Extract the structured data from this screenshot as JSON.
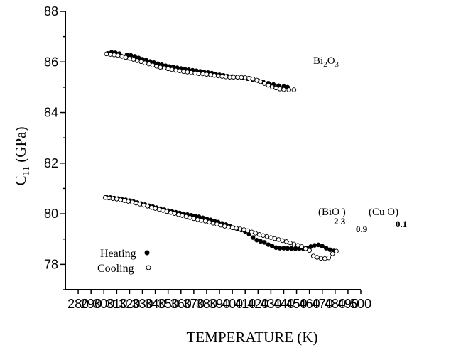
{
  "chart_data": {
    "type": "scatter",
    "title": "",
    "xlabel": "TEMPERATURE  (K)",
    "ylabel": {
      "main": "C",
      "sub": "11",
      "unit": " (GPa)"
    },
    "xlim": [
      270,
      500
    ],
    "ylim": [
      77,
      88
    ],
    "x_ticks": [
      280,
      290,
      300,
      310,
      320,
      330,
      340,
      350,
      360,
      370,
      380,
      390,
      400,
      410,
      420,
      430,
      440,
      450,
      460,
      470,
      480,
      490,
      500
    ],
    "y_ticks": [
      78,
      80,
      82,
      84,
      86,
      88
    ],
    "grid": false,
    "legend": {
      "placement": "lower-left",
      "entries": [
        {
          "label": "Heating",
          "marker": "filled-circle"
        },
        {
          "label": "Cooling",
          "marker": "open-circle"
        }
      ]
    },
    "annotations": {
      "bi2o3": {
        "parts": [
          "Bi",
          "2",
          "O",
          "3"
        ]
      },
      "composite": {
        "parts": [
          "(BiO )",
          "2 3",
          "0.9",
          "(Cu O)",
          "0.1"
        ]
      }
    },
    "series": [
      {
        "name": "Heating",
        "marker": "filled-circle",
        "points": [
          [
            303,
            86.34
          ],
          [
            306,
            86.38
          ],
          [
            309,
            86.36
          ],
          [
            312,
            86.33
          ],
          [
            318,
            86.28
          ],
          [
            321,
            86.26
          ],
          [
            324,
            86.22
          ],
          [
            327,
            86.16
          ],
          [
            330,
            86.11
          ],
          [
            333,
            86.07
          ],
          [
            336,
            86.02
          ],
          [
            339,
            85.97
          ],
          [
            342,
            85.93
          ],
          [
            345,
            85.89
          ],
          [
            348,
            85.85
          ],
          [
            351,
            85.82
          ],
          [
            354,
            85.8
          ],
          [
            357,
            85.77
          ],
          [
            360,
            85.74
          ],
          [
            363,
            85.72
          ],
          [
            366,
            85.69
          ],
          [
            369,
            85.67
          ],
          [
            372,
            85.65
          ],
          [
            375,
            85.63
          ],
          [
            378,
            85.6
          ],
          [
            381,
            85.58
          ],
          [
            384,
            85.56
          ],
          [
            387,
            85.52
          ],
          [
            390,
            85.49
          ],
          [
            393,
            85.47
          ],
          [
            396,
            85.44
          ],
          [
            400,
            85.42
          ],
          [
            404,
            85.4
          ],
          [
            408,
            85.37
          ],
          [
            412,
            85.34
          ],
          [
            416,
            85.3
          ],
          [
            420,
            85.26
          ],
          [
            424,
            85.21
          ],
          [
            428,
            85.16
          ],
          [
            432,
            85.11
          ],
          [
            436,
            85.06
          ],
          [
            440,
            85.03
          ],
          [
            443,
            85.0
          ],
          [
            302,
            80.65
          ],
          [
            305,
            80.64
          ],
          [
            308,
            80.62
          ],
          [
            311,
            80.6
          ],
          [
            314,
            80.57
          ],
          [
            317,
            80.55
          ],
          [
            320,
            80.52
          ],
          [
            323,
            80.48
          ],
          [
            326,
            80.44
          ],
          [
            329,
            80.4
          ],
          [
            332,
            80.36
          ],
          [
            335,
            80.32
          ],
          [
            338,
            80.28
          ],
          [
            341,
            80.24
          ],
          [
            344,
            80.2
          ],
          [
            347,
            80.16
          ],
          [
            350,
            80.12
          ],
          [
            353,
            80.09
          ],
          [
            356,
            80.06
          ],
          [
            359,
            80.03
          ],
          [
            362,
            80.0
          ],
          [
            365,
            79.97
          ],
          [
            368,
            79.94
          ],
          [
            371,
            79.91
          ],
          [
            374,
            79.88
          ],
          [
            377,
            79.84
          ],
          [
            380,
            79.8
          ],
          [
            383,
            79.76
          ],
          [
            386,
            79.72
          ],
          [
            389,
            79.67
          ],
          [
            392,
            79.62
          ],
          [
            395,
            79.57
          ],
          [
            398,
            79.51
          ],
          [
            401,
            79.45
          ],
          [
            404,
            79.4
          ],
          [
            407,
            79.36
          ],
          [
            410,
            79.3
          ],
          [
            413,
            79.2
          ],
          [
            416,
            79.06
          ],
          [
            419,
            78.96
          ],
          [
            422,
            78.91
          ],
          [
            425,
            78.87
          ],
          [
            428,
            78.78
          ],
          [
            431,
            78.72
          ],
          [
            434,
            78.66
          ],
          [
            437,
            78.64
          ],
          [
            440,
            78.64
          ],
          [
            443,
            78.63
          ],
          [
            446,
            78.63
          ],
          [
            449,
            78.62
          ],
          [
            452,
            78.62
          ],
          [
            455,
            78.63
          ],
          [
            458,
            78.64
          ],
          [
            461,
            78.7
          ],
          [
            464,
            78.75
          ],
          [
            467,
            78.77
          ],
          [
            470,
            78.72
          ],
          [
            473,
            78.64
          ],
          [
            476,
            78.58
          ],
          [
            479,
            78.53
          ]
        ]
      },
      {
        "name": "Cooling",
        "marker": "open-circle",
        "points": [
          [
            302,
            86.32
          ],
          [
            305,
            86.3
          ],
          [
            308,
            86.28
          ],
          [
            311,
            86.26
          ],
          [
            314,
            86.22
          ],
          [
            317,
            86.18
          ],
          [
            320,
            86.14
          ],
          [
            323,
            86.1
          ],
          [
            326,
            86.05
          ],
          [
            329,
            86.01
          ],
          [
            332,
            85.96
          ],
          [
            335,
            85.92
          ],
          [
            338,
            85.87
          ],
          [
            341,
            85.83
          ],
          [
            344,
            85.79
          ],
          [
            347,
            85.76
          ],
          [
            350,
            85.73
          ],
          [
            353,
            85.7
          ],
          [
            356,
            85.67
          ],
          [
            359,
            85.65
          ],
          [
            362,
            85.62
          ],
          [
            365,
            85.6
          ],
          [
            368,
            85.58
          ],
          [
            371,
            85.56
          ],
          [
            374,
            85.54
          ],
          [
            377,
            85.53
          ],
          [
            380,
            85.51
          ],
          [
            383,
            85.49
          ],
          [
            386,
            85.47
          ],
          [
            389,
            85.45
          ],
          [
            392,
            85.43
          ],
          [
            395,
            85.41
          ],
          [
            398,
            85.4
          ],
          [
            401,
            85.4
          ],
          [
            404,
            85.4
          ],
          [
            407,
            85.39
          ],
          [
            410,
            85.38
          ],
          [
            413,
            85.36
          ],
          [
            416,
            85.33
          ],
          [
            419,
            85.28
          ],
          [
            422,
            85.22
          ],
          [
            425,
            85.15
          ],
          [
            428,
            85.08
          ],
          [
            431,
            85.01
          ],
          [
            434,
            84.97
          ],
          [
            437,
            84.93
          ],
          [
            440,
            84.91
          ],
          [
            444,
            84.9
          ],
          [
            448,
            84.9
          ],
          [
            301,
            80.64
          ],
          [
            304,
            80.62
          ],
          [
            307,
            80.6
          ],
          [
            310,
            80.58
          ],
          [
            313,
            80.55
          ],
          [
            316,
            80.52
          ],
          [
            319,
            80.49
          ],
          [
            322,
            80.46
          ],
          [
            325,
            80.42
          ],
          [
            328,
            80.38
          ],
          [
            331,
            80.34
          ],
          [
            334,
            80.3
          ],
          [
            337,
            80.25
          ],
          [
            340,
            80.21
          ],
          [
            343,
            80.17
          ],
          [
            346,
            80.13
          ],
          [
            349,
            80.09
          ],
          [
            352,
            80.05
          ],
          [
            355,
            80.01
          ],
          [
            358,
            79.97
          ],
          [
            361,
            79.93
          ],
          [
            364,
            79.89
          ],
          [
            367,
            79.85
          ],
          [
            370,
            79.81
          ],
          [
            373,
            79.77
          ],
          [
            376,
            79.74
          ],
          [
            379,
            79.71
          ],
          [
            382,
            79.67
          ],
          [
            385,
            79.63
          ],
          [
            388,
            79.59
          ],
          [
            391,
            79.55
          ],
          [
            394,
            79.51
          ],
          [
            397,
            79.47
          ],
          [
            400,
            79.45
          ],
          [
            403,
            79.43
          ],
          [
            406,
            79.4
          ],
          [
            409,
            79.37
          ],
          [
            412,
            79.33
          ],
          [
            415,
            79.28
          ],
          [
            418,
            79.23
          ],
          [
            421,
            79.18
          ],
          [
            424,
            79.14
          ],
          [
            427,
            79.1
          ],
          [
            430,
            79.06
          ],
          [
            433,
            79.02
          ],
          [
            436,
            78.98
          ],
          [
            439,
            78.94
          ],
          [
            442,
            78.9
          ],
          [
            445,
            78.85
          ],
          [
            448,
            78.8
          ],
          [
            451,
            78.75
          ],
          [
            454,
            78.7
          ],
          [
            457,
            78.62
          ],
          [
            460,
            78.55
          ],
          [
            463,
            78.33
          ],
          [
            466,
            78.28
          ],
          [
            469,
            78.24
          ],
          [
            472,
            78.23
          ],
          [
            475,
            78.26
          ],
          [
            478,
            78.42
          ],
          [
            481,
            78.52
          ]
        ]
      }
    ]
  }
}
